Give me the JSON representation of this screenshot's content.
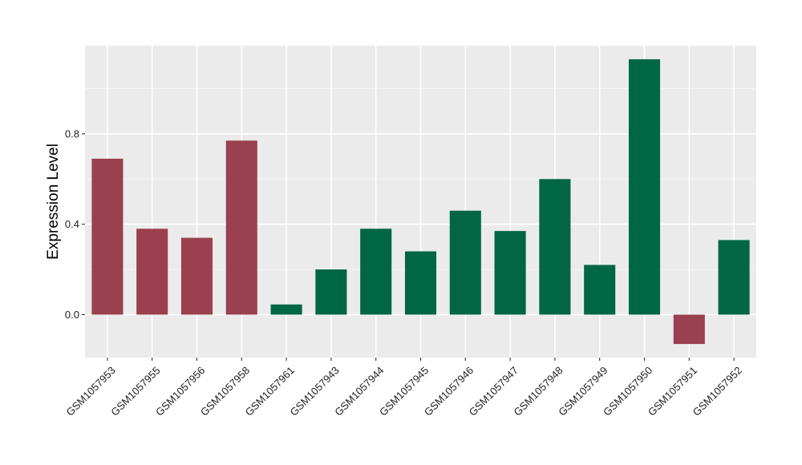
{
  "chart_data": {
    "type": "bar",
    "title": "",
    "xlabel": "",
    "ylabel": "Expression Level",
    "ylim": [
      -0.19,
      1.19
    ],
    "yticks": [
      0.0,
      0.4,
      0.8
    ],
    "ytick_labels": [
      "0.0",
      "0.4",
      "0.8"
    ],
    "grid": true,
    "legend": "none",
    "categories": [
      "GSM1057953",
      "GSM1057955",
      "GSM1057956",
      "GSM1057958",
      "GSM1057961",
      "GSM1057943",
      "GSM1057944",
      "GSM1057945",
      "GSM1057946",
      "GSM1057947",
      "GSM1057948",
      "GSM1057949",
      "GSM1057950",
      "GSM1057951",
      "GSM1057952"
    ],
    "values": [
      0.69,
      0.38,
      0.34,
      0.77,
      0.045,
      0.2,
      0.38,
      0.28,
      0.46,
      0.37,
      0.6,
      0.22,
      1.13,
      -0.13,
      0.33
    ],
    "bar_colors": [
      "#9a404e",
      "#9a404e",
      "#9a404e",
      "#9a404e",
      "#006643",
      "#006643",
      "#006643",
      "#006643",
      "#006643",
      "#006643",
      "#006643",
      "#006643",
      "#006643",
      "#9a404e",
      "#006643"
    ],
    "colors": {
      "panel_background": "#ebebeb",
      "grid_major": "#ffffff",
      "grid_minor": "#f5f5f5",
      "tick": "#333333"
    }
  }
}
